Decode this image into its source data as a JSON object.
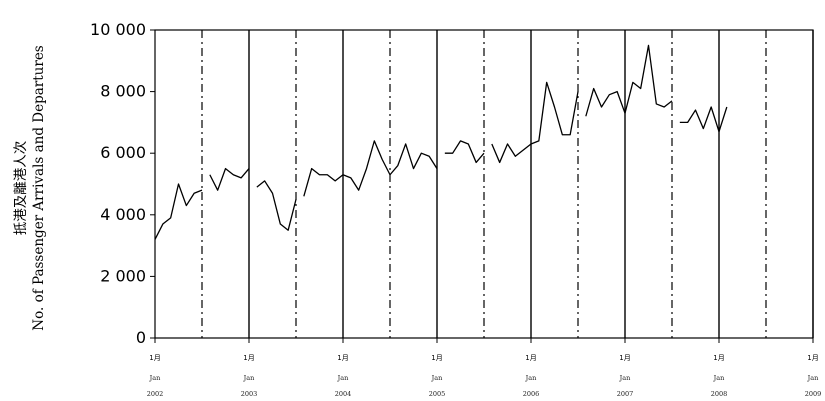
{
  "chart_data": {
    "type": "line",
    "title": "",
    "ylabel_zh": "抵港及離港人次",
    "ylabel_en": "No. of Passenger Arrivals and Departures",
    "ylim": [
      0,
      10000
    ],
    "yticks": [
      {
        "value": 0,
        "label": "0"
      },
      {
        "value": 2000,
        "label": "2 000"
      },
      {
        "value": 4000,
        "label": "4 000"
      },
      {
        "value": 6000,
        "label": "6 000"
      },
      {
        "value": 8000,
        "label": "8 000"
      },
      {
        "value": 10000,
        "label": "10 000"
      }
    ],
    "xticks": [
      {
        "month_index": 0,
        "line1": "1月",
        "line2": "Jan",
        "line3": "2002"
      },
      {
        "month_index": 12,
        "line1": "1月",
        "line2": "Jan",
        "line3": "2003"
      },
      {
        "month_index": 24,
        "line1": "1月",
        "line2": "Jan",
        "line3": "2004"
      },
      {
        "month_index": 36,
        "line1": "1月",
        "line2": "Jan",
        "line3": "2005"
      },
      {
        "month_index": 48,
        "line1": "1月",
        "line2": "Jan",
        "line3": "2006"
      },
      {
        "month_index": 60,
        "line1": "1月",
        "line2": "Jan",
        "line3": "2007"
      },
      {
        "month_index": 72,
        "line1": "1月",
        "line2": "Jan",
        "line3": "2008"
      },
      {
        "month_index": 84,
        "line1": "1月",
        "line2": "Jan",
        "line3": "2009"
      }
    ],
    "xlim_months": [
      0,
      84
    ],
    "year_boundaries_solid": [
      12,
      24,
      36,
      48,
      60,
      72,
      84
    ],
    "mid_year_dashdot": [
      6,
      18,
      30,
      42,
      54,
      66,
      78
    ],
    "series": [
      {
        "values": [
          3200,
          3700,
          3900,
          5000,
          4300,
          4700,
          4800,
          5300,
          4800,
          5500,
          5300,
          5200,
          5500,
          4900,
          5100,
          4700,
          3700,
          3500,
          4500,
          4600,
          5500,
          5300,
          5300,
          5100,
          5300,
          5200,
          4800,
          5500,
          6400,
          5800,
          5300,
          5600,
          6300,
          5500,
          6000,
          5900,
          5500,
          6000,
          6000,
          6400,
          6300,
          5700,
          6000,
          6300,
          5700,
          6300,
          5900,
          6100,
          6300,
          6400,
          8300,
          7500,
          6600,
          6600,
          8000,
          7200,
          8100,
          7500,
          7900,
          8000,
          7300,
          8300,
          8100,
          9500,
          7600,
          7500,
          7700,
          7000,
          7000,
          7400,
          6800,
          7500,
          6700,
          7500
        ],
        "breaks_after_index": [
          6,
          12,
          18,
          36,
          42,
          54,
          66
        ]
      }
    ],
    "grid": false
  }
}
